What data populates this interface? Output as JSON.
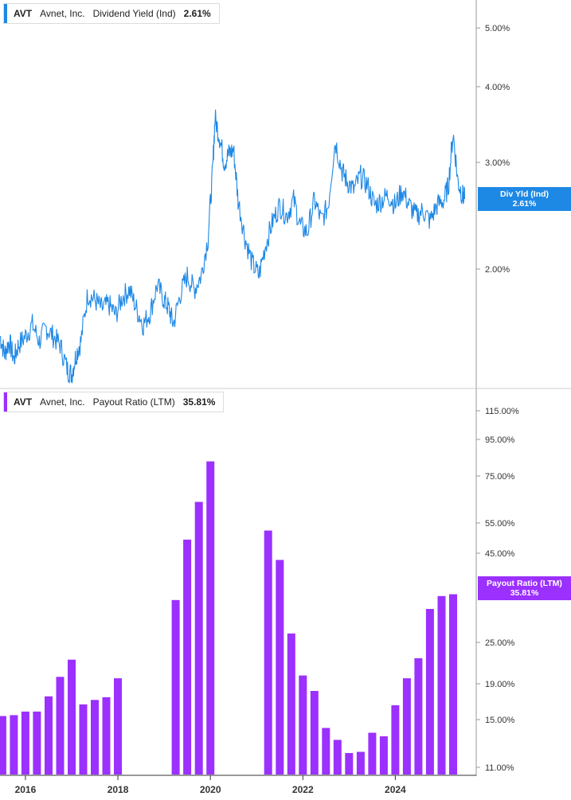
{
  "colors": {
    "yield": "#1e88e5",
    "payout": "#9b30ff",
    "axis": "#999999",
    "text": "#333333"
  },
  "panels": [
    {
      "ticker": "AVT",
      "company": "Avnet, Inc.",
      "metric": "Dividend Yield (Ind)",
      "value": "2.61%",
      "badge_line1": "Div Yld (Ind)",
      "badge_line2": "2.61%"
    },
    {
      "ticker": "AVT",
      "company": "Avnet, Inc.",
      "metric": "Payout Ratio (LTM)",
      "value": "35.81%",
      "badge_line1": "Payout Ratio (LTM)",
      "badge_line2": "35.81%"
    }
  ],
  "chart_data": [
    {
      "type": "line",
      "title": "AVT Avnet, Inc. Dividend Yield (Ind) 2.61%",
      "y_scale": "log",
      "ylim": [
        1.25,
        5.5
      ],
      "y_ticks": [
        "5.00%",
        "4.00%",
        "3.00%",
        "2.00%"
      ],
      "y_tick_values": [
        5.0,
        4.0,
        3.0,
        2.0
      ],
      "x_ticks": [
        "2016",
        "2018",
        "2020",
        "2022",
        "2024"
      ],
      "x_tick_values": [
        2016,
        2018,
        2020,
        2022,
        2024
      ],
      "xlim": [
        2015.45,
        2025.75
      ],
      "last_value": 2.61,
      "series": [
        {
          "x": [
            2015.45,
            2015.55,
            2015.65,
            2015.75,
            2015.85,
            2016.0,
            2016.15,
            2016.3,
            2016.45,
            2016.6,
            2016.75,
            2016.9,
            2017.0,
            2017.1,
            2017.2,
            2017.35,
            2017.5,
            2017.65,
            2017.8,
            2017.95,
            2018.1,
            2018.25,
            2018.4,
            2018.55,
            2018.7,
            2018.85,
            2019.0,
            2019.1,
            2019.2,
            2019.35,
            2019.5,
            2019.65,
            2019.8,
            2019.95,
            2020.05,
            2020.1,
            2020.2,
            2020.3,
            2020.4,
            2020.5,
            2020.6,
            2020.75,
            2020.9,
            2021.05,
            2021.2,
            2021.35,
            2021.5,
            2021.65,
            2021.8,
            2021.95,
            2022.1,
            2022.25,
            2022.4,
            2022.55,
            2022.7,
            2022.85,
            2022.95,
            2023.1,
            2023.25,
            2023.4,
            2023.55,
            2023.7,
            2023.85,
            2024.0,
            2024.15,
            2024.3,
            2024.45,
            2024.6,
            2024.75,
            2024.9,
            2025.05,
            2025.15,
            2025.25,
            2025.35,
            2025.45,
            2025.5
          ],
          "y": [
            1.55,
            1.45,
            1.52,
            1.42,
            1.5,
            1.55,
            1.62,
            1.52,
            1.6,
            1.55,
            1.5,
            1.37,
            1.34,
            1.45,
            1.52,
            1.82,
            1.78,
            1.72,
            1.75,
            1.68,
            1.8,
            1.85,
            1.72,
            1.62,
            1.7,
            1.88,
            1.78,
            1.72,
            1.62,
            1.82,
            1.95,
            1.85,
            1.95,
            2.25,
            2.9,
            3.55,
            3.3,
            3.0,
            3.1,
            3.15,
            2.6,
            2.25,
            2.05,
            1.95,
            2.2,
            2.4,
            2.55,
            2.45,
            2.6,
            2.35,
            2.3,
            2.6,
            2.4,
            2.55,
            3.25,
            2.9,
            2.8,
            2.7,
            2.85,
            2.75,
            2.55,
            2.6,
            2.65,
            2.55,
            2.7,
            2.55,
            2.45,
            2.5,
            2.4,
            2.55,
            2.6,
            2.75,
            3.35,
            2.8,
            2.65,
            2.61
          ]
        }
      ]
    },
    {
      "type": "bar",
      "title": "AVT Avnet, Inc. Payout Ratio (LTM) 35.81%",
      "y_scale": "nonlinear",
      "y_ticks": [
        "115.00%",
        "95.00%",
        "75.00%",
        "55.00%",
        "45.00%",
        "25.00%",
        "19.00%",
        "15.00%",
        "11.00%"
      ],
      "y_tick_values": [
        115,
        95,
        75,
        55,
        45,
        25,
        19,
        15,
        11
      ],
      "x_ticks": [
        "2016",
        "2018",
        "2020",
        "2022",
        "2024"
      ],
      "x_tick_values": [
        2016,
        2018,
        2020,
        2022,
        2024
      ],
      "xlim": [
        2015.45,
        2025.75
      ],
      "last_value": 35.81,
      "bars": [
        {
          "x": 2015.5,
          "value": 15.4
        },
        {
          "x": 2015.75,
          "value": 15.5
        },
        {
          "x": 2016.0,
          "value": 15.9
        },
        {
          "x": 2016.25,
          "value": 15.9
        },
        {
          "x": 2016.5,
          "value": 17.6
        },
        {
          "x": 2016.75,
          "value": 20.0
        },
        {
          "x": 2017.0,
          "value": 22.5
        },
        {
          "x": 2017.25,
          "value": 16.7
        },
        {
          "x": 2017.5,
          "value": 17.2
        },
        {
          "x": 2017.75,
          "value": 17.5
        },
        {
          "x": 2018.0,
          "value": 19.8
        },
        {
          "x": 2019.25,
          "value": 34.5
        },
        {
          "x": 2019.5,
          "value": 49.5
        },
        {
          "x": 2019.75,
          "value": 64.0
        },
        {
          "x": 2020.0,
          "value": 83.0
        },
        {
          "x": 2021.25,
          "value": 52.5
        },
        {
          "x": 2021.5,
          "value": 43.5
        },
        {
          "x": 2021.75,
          "value": 27.0
        },
        {
          "x": 2022.0,
          "value": 20.2
        },
        {
          "x": 2022.25,
          "value": 18.2
        },
        {
          "x": 2022.5,
          "value": 14.3
        },
        {
          "x": 2022.75,
          "value": 13.3
        },
        {
          "x": 2023.0,
          "value": 12.2
        },
        {
          "x": 2023.25,
          "value": 12.3
        },
        {
          "x": 2023.5,
          "value": 13.9
        },
        {
          "x": 2023.75,
          "value": 13.6
        },
        {
          "x": 2024.0,
          "value": 16.6
        },
        {
          "x": 2024.25,
          "value": 19.8
        },
        {
          "x": 2024.5,
          "value": 22.7
        },
        {
          "x": 2024.75,
          "value": 32.5
        },
        {
          "x": 2025.0,
          "value": 35.4
        },
        {
          "x": 2025.25,
          "value": 35.81
        }
      ]
    }
  ]
}
